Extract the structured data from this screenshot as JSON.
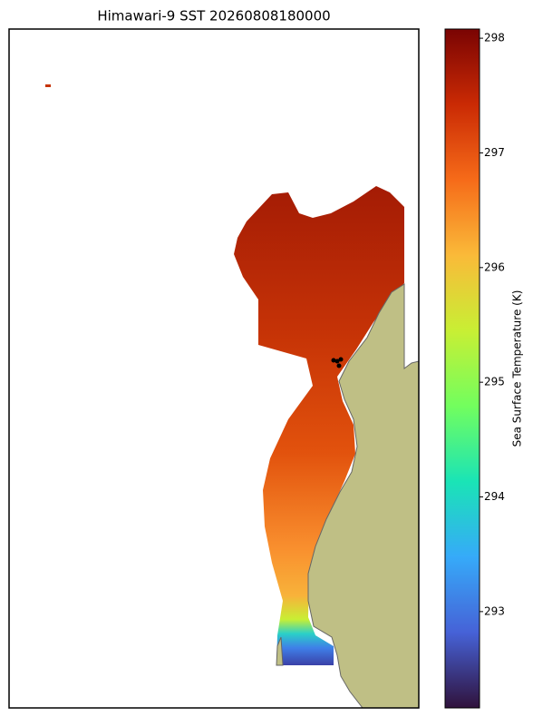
{
  "chart_data": {
    "type": "map",
    "title": "Himawari-9 SST 20260808180000",
    "colorbar": {
      "label": "Sea Surface Temperature (K)",
      "lim": [
        292.16,
        298.08
      ],
      "ticks": [
        293,
        294,
        295,
        296,
        297,
        298
      ],
      "colors": [
        "#30123b",
        "#4662d7",
        "#36aaf9",
        "#1ae4b6",
        "#72fe5e",
        "#c8ef34",
        "#faba39",
        "#f66b19",
        "#ca2a04",
        "#7a0403"
      ]
    }
  }
}
